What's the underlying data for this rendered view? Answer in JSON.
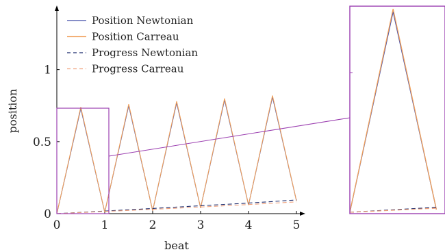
{
  "chart_data": {
    "type": "line",
    "xlabel": "beat",
    "ylabel": "position",
    "xlim": [
      0,
      5
    ],
    "ylim": [
      0,
      1.45
    ],
    "x_ticks": [
      "0",
      "1",
      "2",
      "3",
      "4",
      "5"
    ],
    "y_ticks": [
      "0",
      "0.5",
      "1"
    ],
    "legend_position": "top-left",
    "series": [
      {
        "name": "Position Newtonian",
        "style": "solid",
        "color": "#3f4aa8",
        "x": [
          0,
          0.5,
          1,
          1.5,
          2,
          2.5,
          3,
          3.5,
          4,
          4.5,
          5
        ],
        "y": [
          0,
          0.73,
          0.01,
          0.75,
          0.02,
          0.77,
          0.04,
          0.79,
          0.06,
          0.81,
          0.09
        ]
      },
      {
        "name": "Position Carreau",
        "style": "solid",
        "color": "#f0a05a",
        "x": [
          0,
          0.5,
          1,
          1.5,
          2,
          2.5,
          3,
          3.5,
          4,
          4.5,
          5
        ],
        "y": [
          0,
          0.74,
          0.01,
          0.76,
          0.02,
          0.78,
          0.04,
          0.8,
          0.06,
          0.82,
          0.09
        ]
      },
      {
        "name": "Progress Newtonian",
        "style": "dashed",
        "color": "#1a2a6c",
        "x": [
          0,
          1,
          2,
          3,
          4,
          5
        ],
        "y": [
          0,
          0.018,
          0.036,
          0.055,
          0.073,
          0.095
        ]
      },
      {
        "name": "Progress Carreau",
        "style": "dashed",
        "color": "#f0a07a",
        "x": [
          0,
          1,
          2,
          3,
          4,
          5
        ],
        "y": [
          0,
          0.015,
          0.03,
          0.046,
          0.063,
          0.082
        ]
      }
    ],
    "zoom_inset": {
      "source_xlim": [
        0,
        1.1
      ],
      "source_ylim": [
        0,
        0.75
      ],
      "frame_color": "#9b3fb0"
    }
  }
}
